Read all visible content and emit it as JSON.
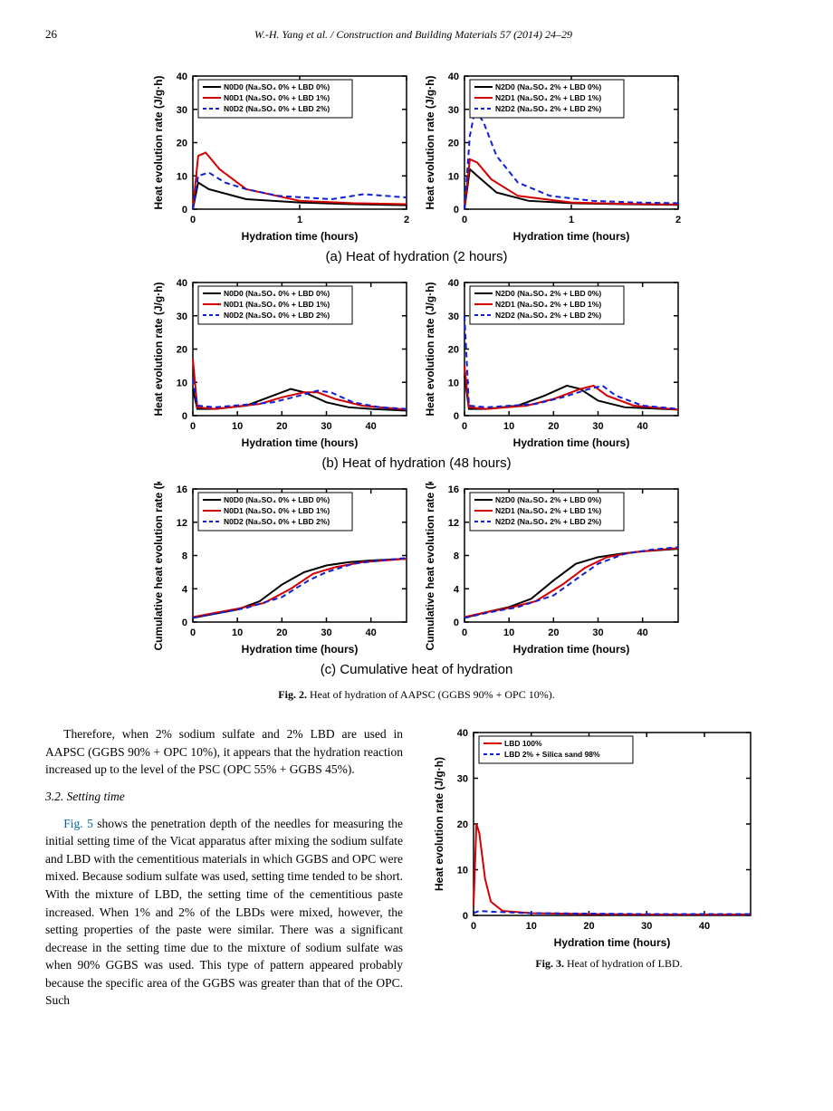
{
  "page_number": "26",
  "running_head": "W.-H. Yang et al. / Construction and Building Materials 57 (2014) 24–29",
  "fig2": {
    "caption_label": "Fig. 2.",
    "caption_text": "Heat of hydration of AAPSC (GGBS 90% + OPC 10%).",
    "row_a": {
      "caption": "(a) Heat of hydration (2 hours)",
      "ylabel": "Heat  evolution rate (J/g·h)",
      "xlabel": "Hydration time (hours)",
      "ylim": [
        0,
        40
      ],
      "ytick_step": 10,
      "xlim": [
        0,
        2
      ],
      "xtick_step": 1,
      "left": {
        "legend": [
          "N0D0 (Na₂SO₄ 0% + LBD 0%)",
          "N0D1 (Na₂SO₄ 0% + LBD 1%)",
          "N0D2 (Na₂SO₄ 0% + LBD 2%)"
        ],
        "colors": [
          "#000000",
          "#d40000",
          "#1020d4"
        ],
        "styles": [
          "solid",
          "solid",
          "dash"
        ],
        "series": [
          [
            [
              0,
              0
            ],
            [
              0.05,
              8
            ],
            [
              0.15,
              6
            ],
            [
              0.5,
              3
            ],
            [
              1,
              2
            ],
            [
              1.5,
              1.5
            ],
            [
              2,
              1.2
            ]
          ],
          [
            [
              0,
              0
            ],
            [
              0.05,
              16
            ],
            [
              0.12,
              17
            ],
            [
              0.25,
              12
            ],
            [
              0.5,
              6
            ],
            [
              1,
              2.5
            ],
            [
              1.5,
              1.8
            ],
            [
              2,
              1.5
            ]
          ],
          [
            [
              0,
              0
            ],
            [
              0.05,
              10
            ],
            [
              0.15,
              11
            ],
            [
              0.3,
              8
            ],
            [
              0.5,
              6
            ],
            [
              0.8,
              4
            ],
            [
              1.3,
              3
            ],
            [
              1.6,
              4.5
            ],
            [
              1.8,
              4
            ],
            [
              2,
              3.5
            ]
          ]
        ]
      },
      "right": {
        "legend": [
          "N2D0 (Na₂SO₄ 2% + LBD 0%)",
          "N2D1 (Na₂SO₄ 2% + LBD 1%)",
          "N2D2 (Na₂SO₄ 2% + LBD 2%)"
        ],
        "colors": [
          "#000000",
          "#d40000",
          "#1020d4"
        ],
        "styles": [
          "solid",
          "solid",
          "dash"
        ],
        "series": [
          [
            [
              0,
              0
            ],
            [
              0.05,
              12
            ],
            [
              0.12,
              10
            ],
            [
              0.3,
              5
            ],
            [
              0.6,
              2.5
            ],
            [
              1,
              1.8
            ],
            [
              1.5,
              1.5
            ],
            [
              2,
              1.3
            ]
          ],
          [
            [
              0,
              0
            ],
            [
              0.05,
              15
            ],
            [
              0.12,
              14
            ],
            [
              0.25,
              9
            ],
            [
              0.5,
              4
            ],
            [
              1,
              2
            ],
            [
              1.5,
              1.6
            ],
            [
              2,
              1.4
            ]
          ],
          [
            [
              0,
              0
            ],
            [
              0.05,
              22
            ],
            [
              0.1,
              30
            ],
            [
              0.18,
              26
            ],
            [
              0.3,
              16
            ],
            [
              0.5,
              8
            ],
            [
              0.8,
              4
            ],
            [
              1.2,
              2.5
            ],
            [
              1.6,
              2
            ],
            [
              2,
              1.8
            ]
          ]
        ]
      }
    },
    "row_b": {
      "caption": "(b) Heat of hydration (48 hours)",
      "ylabel": "Heat  evolution rate (J/g·h)",
      "xlabel": "Hydration time (hours)",
      "ylim": [
        0,
        40
      ],
      "ytick_step": 10,
      "xlim": [
        0,
        48
      ],
      "xticks": [
        0,
        10,
        20,
        30,
        40
      ],
      "left": {
        "legend": [
          "N0D0 (Na₂SO₄ 0% + LBD 0%)",
          "N0D1 (Na₂SO₄ 0% + LBD 1%)",
          "N0D2 (Na₂SO₄ 0% + LBD 2%)"
        ],
        "colors": [
          "#000000",
          "#d40000",
          "#1020d4"
        ],
        "styles": [
          "solid",
          "solid",
          "dash"
        ],
        "series": [
          [
            [
              0,
              8
            ],
            [
              1,
              2
            ],
            [
              5,
              2
            ],
            [
              12,
              3
            ],
            [
              18,
              6
            ],
            [
              22,
              8
            ],
            [
              25,
              7
            ],
            [
              30,
              4
            ],
            [
              35,
              2.5
            ],
            [
              40,
              2
            ],
            [
              48,
              1.5
            ]
          ],
          [
            [
              0,
              17
            ],
            [
              1,
              2.5
            ],
            [
              5,
              2
            ],
            [
              15,
              3.5
            ],
            [
              20,
              5.5
            ],
            [
              25,
              7
            ],
            [
              28,
              7
            ],
            [
              32,
              5
            ],
            [
              38,
              3
            ],
            [
              48,
              1.8
            ]
          ],
          [
            [
              0,
              11
            ],
            [
              1,
              3
            ],
            [
              5,
              2.5
            ],
            [
              18,
              4
            ],
            [
              24,
              6
            ],
            [
              28,
              7.5
            ],
            [
              31,
              7
            ],
            [
              36,
              4
            ],
            [
              42,
              2.5
            ],
            [
              48,
              2
            ]
          ]
        ]
      },
      "right": {
        "legend": [
          "N2D0 (Na₂SO₄ 2% + LBD 0%)",
          "N2D1 (Na₂SO₄ 2% + LBD 1%)",
          "N2D2 (Na₂SO₄ 2% + LBD 2%)"
        ],
        "colors": [
          "#000000",
          "#d40000",
          "#1020d4"
        ],
        "styles": [
          "solid",
          "solid",
          "dash"
        ],
        "series": [
          [
            [
              0,
              12
            ],
            [
              1,
              2
            ],
            [
              5,
              2
            ],
            [
              12,
              3
            ],
            [
              18,
              6
            ],
            [
              23,
              9
            ],
            [
              26,
              8
            ],
            [
              30,
              4.5
            ],
            [
              36,
              2.5
            ],
            [
              48,
              1.8
            ]
          ],
          [
            [
              0,
              15
            ],
            [
              1,
              2.5
            ],
            [
              5,
              2
            ],
            [
              14,
              3
            ],
            [
              20,
              5
            ],
            [
              26,
              8
            ],
            [
              29,
              9
            ],
            [
              32,
              6
            ],
            [
              38,
              3
            ],
            [
              48,
              1.8
            ]
          ],
          [
            [
              0,
              30
            ],
            [
              1,
              3
            ],
            [
              5,
              2.5
            ],
            [
              16,
              3.5
            ],
            [
              22,
              5.5
            ],
            [
              28,
              8
            ],
            [
              31,
              9
            ],
            [
              34,
              6
            ],
            [
              40,
              3
            ],
            [
              48,
              2
            ]
          ]
        ]
      }
    },
    "row_c": {
      "caption": "(c) Cumulative heat of hydration",
      "ylabel": "Cumulative heat  evolution rate (kJ/g)",
      "xlabel": "Hydration time (hours)",
      "ylim": [
        0,
        16
      ],
      "ytick_step": 4,
      "xlim": [
        0,
        48
      ],
      "xticks": [
        0,
        10,
        20,
        30,
        40
      ],
      "left": {
        "legend": [
          "N0D0 (Na₂SO₄ 0% + LBD 0%)",
          "N0D1 (Na₂SO₄ 0% + LBD 1%)",
          "N0D2 (Na₂SO₄ 0% + LBD 2%)"
        ],
        "colors": [
          "#000000",
          "#d40000",
          "#1020d4"
        ],
        "styles": [
          "solid",
          "solid",
          "dash"
        ],
        "series": [
          [
            [
              0,
              0.5
            ],
            [
              5,
              1
            ],
            [
              10,
              1.5
            ],
            [
              15,
              2.5
            ],
            [
              20,
              4.5
            ],
            [
              25,
              6
            ],
            [
              30,
              6.8
            ],
            [
              35,
              7.2
            ],
            [
              40,
              7.4
            ],
            [
              48,
              7.6
            ]
          ],
          [
            [
              0,
              0.6
            ],
            [
              5,
              1.1
            ],
            [
              10,
              1.6
            ],
            [
              16,
              2.3
            ],
            [
              22,
              4
            ],
            [
              27,
              5.8
            ],
            [
              32,
              6.6
            ],
            [
              38,
              7.2
            ],
            [
              48,
              7.6
            ]
          ],
          [
            [
              0,
              0.5
            ],
            [
              5,
              1
            ],
            [
              12,
              1.7
            ],
            [
              20,
              3
            ],
            [
              26,
              5
            ],
            [
              30,
              6
            ],
            [
              36,
              7
            ],
            [
              42,
              7.4
            ],
            [
              48,
              7.7
            ]
          ]
        ]
      },
      "right": {
        "legend": [
          "N2D0 (Na₂SO₄ 2% + LBD 0%)",
          "N2D1 (Na₂SO₄ 2% + LBD 1%)",
          "N2D2 (Na₂SO₄ 2% + LBD 2%)"
        ],
        "colors": [
          "#000000",
          "#d40000",
          "#1020d4"
        ],
        "styles": [
          "solid",
          "solid",
          "dash"
        ],
        "series": [
          [
            [
              0,
              0.5
            ],
            [
              5,
              1.2
            ],
            [
              10,
              1.8
            ],
            [
              15,
              2.8
            ],
            [
              20,
              5
            ],
            [
              25,
              7
            ],
            [
              30,
              7.8
            ],
            [
              35,
              8.2
            ],
            [
              40,
              8.5
            ],
            [
              48,
              8.8
            ]
          ],
          [
            [
              0,
              0.6
            ],
            [
              5,
              1.2
            ],
            [
              10,
              1.7
            ],
            [
              16,
              2.5
            ],
            [
              22,
              4.5
            ],
            [
              27,
              6.5
            ],
            [
              32,
              7.8
            ],
            [
              38,
              8.4
            ],
            [
              48,
              8.9
            ]
          ],
          [
            [
              0,
              0.5
            ],
            [
              5,
              1.1
            ],
            [
              12,
              1.8
            ],
            [
              20,
              3.2
            ],
            [
              26,
              5.5
            ],
            [
              30,
              7
            ],
            [
              36,
              8.2
            ],
            [
              42,
              8.7
            ],
            [
              48,
              9
            ]
          ]
        ]
      }
    }
  },
  "body": {
    "p1": "Therefore, when 2% sodium sulfate and 2% LBD are used in AAPSC (GGBS 90% + OPC 10%), it appears that the hydration reaction increased up to the level of the PSC (OPC 55% + GGBS 45%).",
    "section": "3.2. Setting time",
    "p2a": "Fig. 5",
    "p2b": " shows the penetration depth of the needles for measuring the initial setting time of the Vicat apparatus after mixing the sodium sulfate and LBD with the cementitious materials in which GGBS and OPC were mixed. Because sodium sulfate was used, setting time tended to be short. With the mixture of LBD, the setting time of the cementitious paste increased. When 1% and 2% of the LBDs were mixed, however, the setting properties of the paste were similar. There was a significant decrease in the setting time due to the mixture of sodium sulfate was when 90% GGBS was used. This type of pattern appeared probably because the specific area of the GGBS was greater than that of the OPC. Such"
  },
  "fig3": {
    "caption_label": "Fig. 3.",
    "caption_text": "Heat of hydration of LBD.",
    "ylabel": "Heat  evolution rate (J/g·h)",
    "xlabel": "Hydration time (hours)",
    "ylim": [
      0,
      40
    ],
    "ytick_step": 10,
    "xlim": [
      0,
      48
    ],
    "xticks": [
      0,
      10,
      20,
      30,
      40
    ],
    "legend": [
      "LBD 100%",
      "LBD 2% + Silica sand 98%"
    ],
    "colors": [
      "#d40000",
      "#1020d4"
    ],
    "styles": [
      "solid",
      "dash"
    ],
    "series": [
      [
        [
          0,
          2
        ],
        [
          0.5,
          20
        ],
        [
          1,
          18
        ],
        [
          2,
          8
        ],
        [
          3,
          3
        ],
        [
          5,
          1
        ],
        [
          10,
          0.5
        ],
        [
          20,
          0.3
        ],
        [
          30,
          0.2
        ],
        [
          48,
          0.2
        ]
      ],
      [
        [
          0,
          0.5
        ],
        [
          1,
          1
        ],
        [
          3,
          0.8
        ],
        [
          10,
          0.5
        ],
        [
          20,
          0.4
        ],
        [
          30,
          0.3
        ],
        [
          48,
          0.3
        ]
      ]
    ]
  }
}
